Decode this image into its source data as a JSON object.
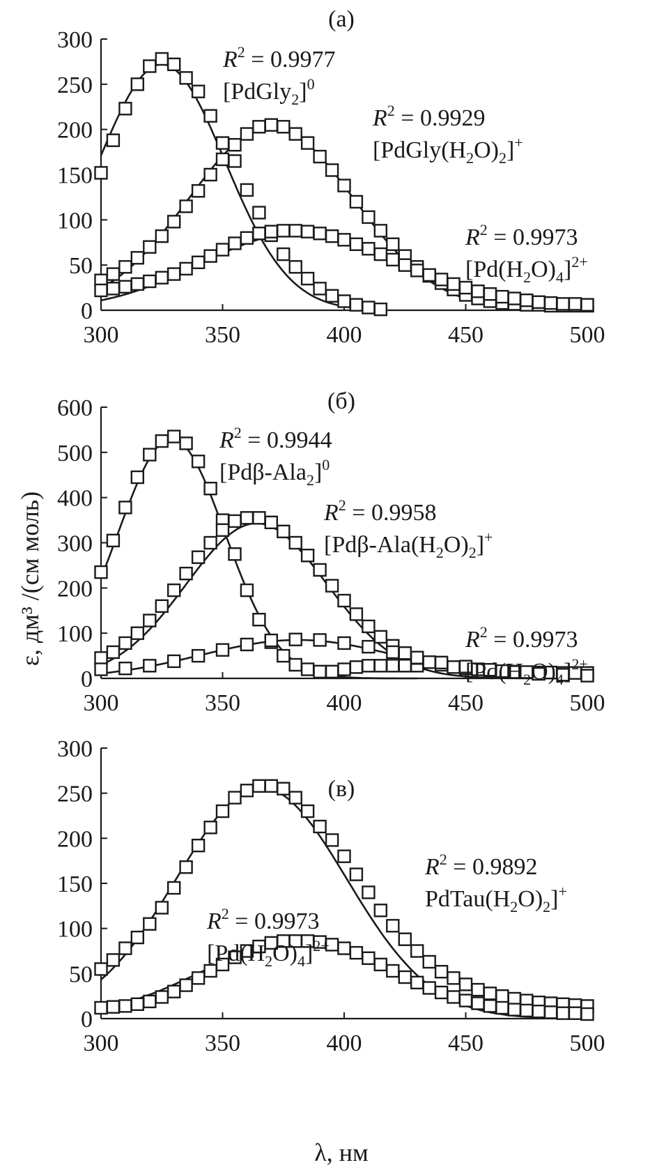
{
  "y_axis_label": "ε, дм³ /(см моль)",
  "x_axis_label": "λ, нм",
  "chart_data": [
    {
      "type": "line",
      "panel_label": "(a)",
      "xlim": [
        300,
        500
      ],
      "ylim": [
        0,
        300
      ],
      "x_ticks": [
        300,
        350,
        400,
        450,
        500
      ],
      "y_ticks": [
        0,
        50,
        100,
        150,
        200,
        250,
        300
      ],
      "grid": false,
      "series": [
        {
          "name": "[PdGly2]0",
          "fit_r2": "R2 = 0.9977",
          "fit": {
            "amplitude": 272,
            "center": 325,
            "width": 26,
            "range": [
              300,
              415
            ]
          },
          "x": [
            300,
            305,
            310,
            315,
            320,
            325,
            330,
            335,
            340,
            345,
            350,
            355,
            360,
            365,
            370,
            375,
            380,
            385,
            390,
            395,
            400,
            405,
            410,
            415
          ],
          "y": [
            152,
            188,
            223,
            250,
            270,
            278,
            272,
            257,
            242,
            215,
            185,
            165,
            133,
            108,
            83,
            62,
            48,
            35,
            24,
            16,
            10,
            6,
            3,
            1
          ]
        },
        {
          "name": "[PdGly(H2O)2]+",
          "fit_r2": "R2 = 0.9929",
          "fit": {
            "amplitude": 203,
            "center": 370,
            "width": 34,
            "range": [
              300,
              500
            ]
          },
          "x": [
            300,
            305,
            310,
            315,
            320,
            325,
            330,
            335,
            340,
            345,
            350,
            355,
            360,
            365,
            370,
            375,
            380,
            385,
            390,
            395,
            400,
            405,
            410,
            415,
            420,
            425,
            430,
            435,
            440,
            445,
            450,
            455,
            460,
            465,
            470,
            475,
            480,
            485,
            490,
            495,
            500
          ],
          "y": [
            33,
            40,
            48,
            58,
            70,
            82,
            98,
            115,
            132,
            150,
            167,
            183,
            195,
            203,
            205,
            203,
            195,
            185,
            170,
            155,
            138,
            120,
            103,
            88,
            73,
            60,
            48,
            38,
            30,
            23,
            17,
            13,
            10,
            8,
            7,
            6,
            6,
            5,
            5,
            5,
            5
          ]
        },
        {
          "name": "[Pd(H2O)4]2+",
          "fit_r2": "R2 = 0.9973",
          "fit": {
            "amplitude": 85,
            "center": 381,
            "width": 40,
            "range": [
              300,
              500
            ]
          },
          "x": [
            300,
            305,
            310,
            315,
            320,
            325,
            330,
            335,
            340,
            345,
            350,
            355,
            360,
            365,
            370,
            375,
            380,
            385,
            390,
            395,
            400,
            405,
            410,
            415,
            420,
            425,
            430,
            435,
            440,
            445,
            450,
            455,
            460,
            465,
            470,
            475,
            480,
            485,
            490,
            495,
            500
          ],
          "y": [
            22,
            24,
            26,
            29,
            32,
            36,
            40,
            46,
            53,
            60,
            67,
            74,
            80,
            85,
            87,
            88,
            88,
            87,
            85,
            82,
            78,
            73,
            68,
            62,
            56,
            50,
            44,
            39,
            34,
            29,
            25,
            21,
            18,
            15,
            13,
            11,
            9,
            8,
            7,
            7,
            6
          ]
        }
      ]
    },
    {
      "type": "line",
      "panel_label": "(б)",
      "xlim": [
        300,
        500
      ],
      "ylim": [
        0,
        600
      ],
      "x_ticks": [
        300,
        350,
        400,
        450,
        500
      ],
      "y_ticks": [
        0,
        100,
        200,
        300,
        400,
        500,
        600
      ],
      "grid": false,
      "series": [
        {
          "name": "[Pdβ-Ala2]0",
          "fit_r2": "R2 = 0.9944",
          "fit": {
            "amplitude": 530,
            "center": 329,
            "width": 22,
            "range": [
              300,
              430
            ]
          },
          "x": [
            300,
            305,
            310,
            315,
            320,
            325,
            330,
            335,
            340,
            345,
            350,
            355,
            360,
            365,
            370,
            375,
            380,
            385,
            390,
            395,
            400,
            405,
            410,
            415,
            420,
            425,
            430
          ],
          "y": [
            235,
            305,
            378,
            445,
            495,
            525,
            535,
            520,
            480,
            420,
            350,
            275,
            195,
            130,
            80,
            50,
            30,
            20,
            15,
            15,
            20,
            25,
            28,
            28,
            28,
            28,
            28
          ]
        },
        {
          "name": "[Pdβ-Ala(H2O)2]+",
          "fit_r2": "R2 = 0.9958",
          "fit": {
            "amplitude": 343,
            "center": 364,
            "width": 29,
            "range": [
              300,
              500
            ]
          },
          "x": [
            300,
            305,
            310,
            315,
            320,
            325,
            330,
            335,
            340,
            345,
            350,
            355,
            360,
            365,
            370,
            375,
            380,
            385,
            390,
            395,
            400,
            405,
            410,
            415,
            420,
            425,
            430,
            435,
            440,
            445,
            450,
            455,
            460,
            465,
            470,
            475,
            480,
            485,
            490,
            495,
            500
          ],
          "y": [
            45,
            58,
            78,
            100,
            128,
            160,
            195,
            232,
            268,
            300,
            328,
            348,
            355,
            355,
            345,
            325,
            300,
            272,
            240,
            205,
            172,
            142,
            115,
            92,
            72,
            56,
            45,
            36,
            30,
            25,
            22,
            20,
            18,
            16,
            15,
            14,
            13,
            13,
            12,
            12,
            12
          ]
        },
        {
          "name": "[Pd(H2O)4]2+",
          "fit_r2": "R2 = 0.9973",
          "fit": {
            "amplitude": 85,
            "center": 381,
            "width": 40,
            "range": [
              300,
              500
            ]
          },
          "x": [
            300,
            310,
            320,
            330,
            340,
            350,
            360,
            370,
            380,
            390,
            400,
            410,
            420,
            430,
            440,
            450,
            460,
            470,
            480,
            490,
            500
          ],
          "y": [
            20,
            22,
            28,
            38,
            50,
            63,
            75,
            84,
            86,
            85,
            78,
            70,
            58,
            46,
            35,
            26,
            19,
            14,
            10,
            8,
            6
          ]
        }
      ]
    },
    {
      "type": "line",
      "panel_label": "(в)",
      "xlim": [
        300,
        500
      ],
      "ylim": [
        0,
        300
      ],
      "x_ticks": [
        300,
        350,
        400,
        450,
        500
      ],
      "y_ticks": [
        0,
        50,
        100,
        150,
        200,
        250,
        300
      ],
      "grid": false,
      "series": [
        {
          "name": "PdTau(H2O)2]+",
          "fit_r2": "R2 = 0.9892",
          "fit": {
            "amplitude": 256,
            "center": 366,
            "width": 35,
            "range": [
              300,
              500
            ]
          },
          "x": [
            300,
            305,
            310,
            315,
            320,
            325,
            330,
            335,
            340,
            345,
            350,
            355,
            360,
            365,
            370,
            375,
            380,
            385,
            390,
            395,
            400,
            405,
            410,
            415,
            420,
            425,
            430,
            435,
            440,
            445,
            450,
            455,
            460,
            465,
            470,
            475,
            480,
            485,
            490,
            495,
            500
          ],
          "y": [
            55,
            65,
            78,
            90,
            105,
            123,
            145,
            168,
            192,
            212,
            230,
            245,
            253,
            258,
            258,
            255,
            245,
            230,
            213,
            198,
            180,
            160,
            140,
            120,
            103,
            88,
            75,
            63,
            52,
            45,
            38,
            32,
            28,
            25,
            22,
            20,
            18,
            17,
            16,
            15,
            14
          ]
        },
        {
          "name": "[Pd(H2O)4]2+",
          "fit_r2": "R2 = 0.9973",
          "fit": {
            "amplitude": 85,
            "center": 381,
            "width": 40,
            "range": [
              300,
              500
            ]
          },
          "x": [
            300,
            305,
            310,
            315,
            320,
            325,
            330,
            335,
            340,
            345,
            350,
            355,
            360,
            365,
            370,
            375,
            380,
            385,
            390,
            395,
            400,
            405,
            410,
            415,
            420,
            425,
            430,
            435,
            440,
            445,
            450,
            455,
            460,
            465,
            470,
            475,
            480,
            485,
            490,
            495,
            500
          ],
          "y": [
            12,
            13,
            14,
            16,
            19,
            24,
            30,
            37,
            45,
            53,
            60,
            68,
            75,
            80,
            84,
            86,
            86,
            86,
            85,
            82,
            78,
            73,
            67,
            60,
            53,
            46,
            40,
            34,
            29,
            24,
            20,
            17,
            14,
            12,
            10,
            9,
            8,
            7,
            6,
            6,
            5
          ]
        }
      ]
    }
  ]
}
